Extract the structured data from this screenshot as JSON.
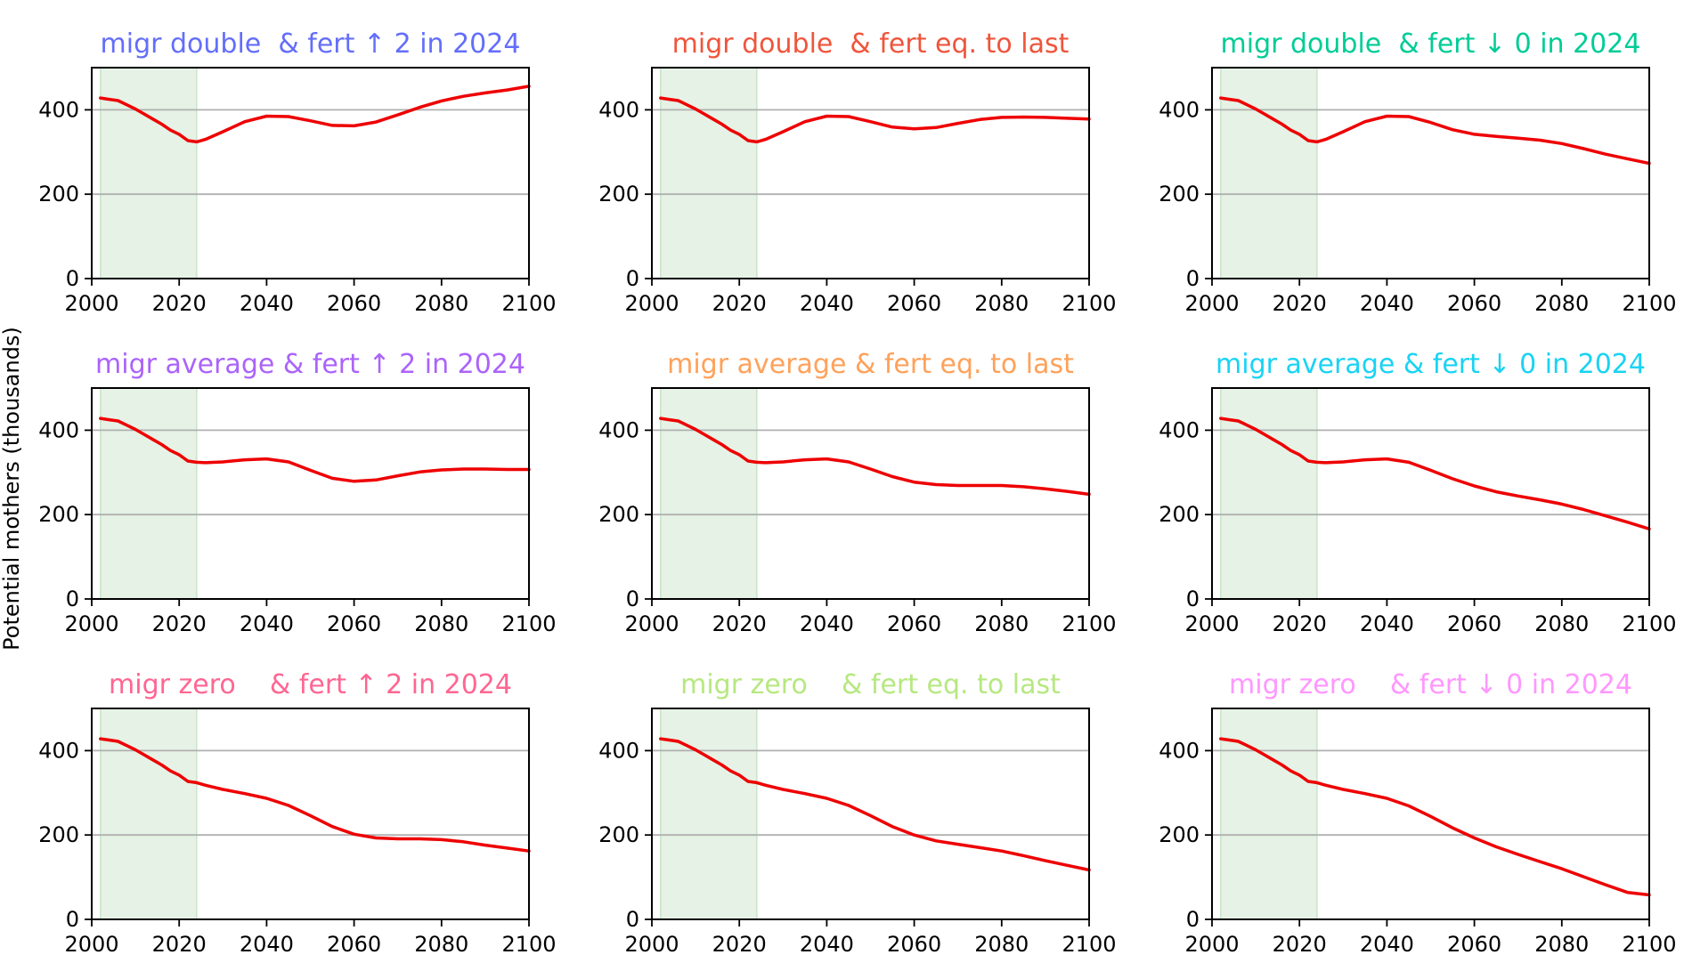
{
  "chart_data": {
    "type": "line",
    "ylabel": "Potential mothers (thousands)",
    "xlim": [
      2000,
      2100
    ],
    "ylim": [
      0,
      500
    ],
    "xticks": [
      "2000",
      "2020",
      "2040",
      "2060",
      "2080",
      "2100"
    ],
    "yticks": [
      "0",
      "200",
      "400"
    ],
    "grid": "horizontal",
    "highlight_span": {
      "x": [
        2002,
        2024
      ],
      "color": "#e5f2e5"
    },
    "line_color": "#ee0000",
    "panels": [
      {
        "title": "migr double  & fert ↑ 2 in 2024",
        "title_color": "#636efa",
        "series": {
          "x": [
            2002,
            2004,
            2006,
            2008,
            2010,
            2012,
            2014,
            2016,
            2018,
            2020,
            2022,
            2024,
            2026,
            2030,
            2035,
            2040,
            2045,
            2050,
            2055,
            2060,
            2065,
            2070,
            2075,
            2080,
            2085,
            2090,
            2095,
            2100
          ],
          "y": [
            428,
            425,
            422,
            412,
            402,
            390,
            378,
            366,
            352,
            342,
            327,
            324,
            330,
            348,
            372,
            385,
            384,
            374,
            363,
            362,
            371,
            388,
            406,
            421,
            432,
            440,
            447,
            456
          ]
        }
      },
      {
        "title": "migr double  & fert eq. to last",
        "title_color": "#ef553b",
        "series": {
          "x": [
            2002,
            2004,
            2006,
            2008,
            2010,
            2012,
            2014,
            2016,
            2018,
            2020,
            2022,
            2024,
            2026,
            2030,
            2035,
            2040,
            2045,
            2050,
            2055,
            2060,
            2065,
            2070,
            2075,
            2080,
            2085,
            2090,
            2095,
            2100
          ],
          "y": [
            428,
            425,
            422,
            412,
            402,
            390,
            378,
            366,
            352,
            342,
            327,
            324,
            330,
            348,
            372,
            385,
            384,
            372,
            359,
            355,
            358,
            368,
            377,
            382,
            383,
            382,
            380,
            378
          ]
        }
      },
      {
        "title": "migr double  & fert ↓ 0 in 2024",
        "title_color": "#00cc96",
        "series": {
          "x": [
            2002,
            2004,
            2006,
            2008,
            2010,
            2012,
            2014,
            2016,
            2018,
            2020,
            2022,
            2024,
            2026,
            2030,
            2035,
            2040,
            2045,
            2050,
            2055,
            2060,
            2065,
            2070,
            2075,
            2080,
            2085,
            2090,
            2095,
            2100
          ],
          "y": [
            428,
            425,
            422,
            412,
            402,
            390,
            378,
            366,
            352,
            342,
            327,
            324,
            330,
            348,
            372,
            385,
            384,
            370,
            353,
            342,
            337,
            333,
            328,
            320,
            308,
            295,
            284,
            273
          ]
        }
      },
      {
        "title": "migr average & fert ↑ 2 in 2024",
        "title_color": "#ab63fa",
        "series": {
          "x": [
            2002,
            2004,
            2006,
            2008,
            2010,
            2012,
            2014,
            2016,
            2018,
            2020,
            2022,
            2024,
            2026,
            2030,
            2035,
            2040,
            2045,
            2050,
            2055,
            2060,
            2065,
            2070,
            2075,
            2080,
            2085,
            2090,
            2095,
            2100
          ],
          "y": [
            428,
            425,
            422,
            412,
            402,
            390,
            378,
            366,
            352,
            342,
            327,
            324,
            323,
            325,
            330,
            332,
            325,
            305,
            286,
            279,
            282,
            292,
            301,
            306,
            308,
            308,
            307,
            307
          ]
        }
      },
      {
        "title": "migr average & fert eq. to last",
        "title_color": "#ffa15a",
        "series": {
          "x": [
            2002,
            2004,
            2006,
            2008,
            2010,
            2012,
            2014,
            2016,
            2018,
            2020,
            2022,
            2024,
            2026,
            2030,
            2035,
            2040,
            2045,
            2050,
            2055,
            2060,
            2065,
            2070,
            2075,
            2080,
            2085,
            2090,
            2095,
            2100
          ],
          "y": [
            428,
            425,
            422,
            412,
            402,
            390,
            378,
            366,
            352,
            342,
            327,
            324,
            323,
            325,
            330,
            332,
            325,
            308,
            290,
            277,
            271,
            269,
            269,
            269,
            266,
            261,
            255,
            248
          ]
        }
      },
      {
        "title": "migr average & fert ↓ 0 in 2024",
        "title_color": "#19d3f3",
        "series": {
          "x": [
            2002,
            2004,
            2006,
            2008,
            2010,
            2012,
            2014,
            2016,
            2018,
            2020,
            2022,
            2024,
            2026,
            2030,
            2035,
            2040,
            2045,
            2050,
            2055,
            2060,
            2065,
            2070,
            2075,
            2080,
            2085,
            2090,
            2095,
            2100
          ],
          "y": [
            428,
            425,
            422,
            412,
            402,
            390,
            378,
            366,
            352,
            342,
            327,
            324,
            323,
            325,
            330,
            332,
            324,
            305,
            285,
            268,
            254,
            244,
            235,
            225,
            212,
            197,
            182,
            166
          ]
        }
      },
      {
        "title": "migr zero    & fert ↑ 2 in 2024",
        "title_color": "#ff6692",
        "series": {
          "x": [
            2002,
            2004,
            2006,
            2008,
            2010,
            2012,
            2014,
            2016,
            2018,
            2020,
            2022,
            2024,
            2026,
            2030,
            2035,
            2040,
            2045,
            2050,
            2055,
            2060,
            2065,
            2070,
            2075,
            2080,
            2085,
            2090,
            2095,
            2100
          ],
          "y": [
            428,
            425,
            422,
            412,
            402,
            390,
            378,
            366,
            352,
            342,
            327,
            324,
            318,
            308,
            298,
            287,
            270,
            246,
            220,
            202,
            193,
            191,
            191,
            189,
            184,
            176,
            169,
            162
          ]
        }
      },
      {
        "title": "migr zero    & fert eq. to last",
        "title_color": "#b6e880",
        "series": {
          "x": [
            2002,
            2004,
            2006,
            2008,
            2010,
            2012,
            2014,
            2016,
            2018,
            2020,
            2022,
            2024,
            2026,
            2030,
            2035,
            2040,
            2045,
            2050,
            2055,
            2060,
            2065,
            2070,
            2075,
            2080,
            2085,
            2090,
            2095,
            2100
          ],
          "y": [
            428,
            425,
            422,
            412,
            402,
            390,
            378,
            366,
            352,
            342,
            327,
            324,
            318,
            308,
            298,
            287,
            270,
            246,
            220,
            200,
            186,
            178,
            170,
            162,
            151,
            139,
            128,
            117
          ]
        }
      },
      {
        "title": "migr zero    & fert ↓ 0 in 2024",
        "title_color": "#ff97ff",
        "series": {
          "x": [
            2002,
            2004,
            2006,
            2008,
            2010,
            2012,
            2014,
            2016,
            2018,
            2020,
            2022,
            2024,
            2026,
            2030,
            2035,
            2040,
            2045,
            2050,
            2055,
            2060,
            2065,
            2070,
            2075,
            2080,
            2085,
            2090,
            2095,
            2100
          ],
          "y": [
            428,
            425,
            422,
            412,
            402,
            390,
            378,
            366,
            352,
            342,
            327,
            324,
            318,
            308,
            298,
            287,
            269,
            244,
            217,
            193,
            172,
            154,
            137,
            120,
            101,
            82,
            64,
            58
          ]
        }
      }
    ]
  }
}
